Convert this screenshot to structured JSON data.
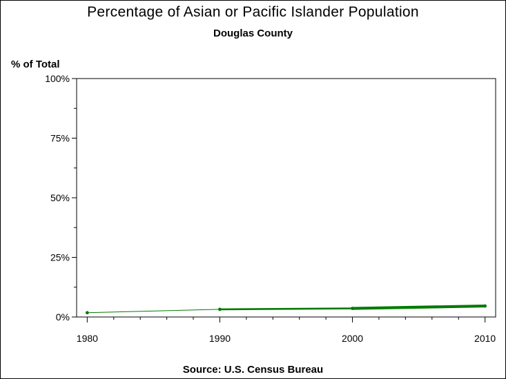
{
  "chart_data": {
    "type": "line",
    "title": "Percentage of Asian or Pacific Islander Population",
    "subtitle": "Douglas County",
    "ylabel": "% of Total",
    "xlabel": "",
    "source": "Source: U.S. Census Bureau",
    "x": [
      1980,
      1990,
      2000,
      2010
    ],
    "series": [
      {
        "values": [
          1.8,
          3.2,
          3.6,
          4.6
        ]
      }
    ],
    "xlim": [
      1979.2,
      2010.8
    ],
    "ylim": [
      0,
      100
    ],
    "x_ticks": [
      1980,
      1990,
      2000,
      2010
    ],
    "x_tick_labels": [
      "1980",
      "1990",
      "2000",
      "2010"
    ],
    "y_ticks": [
      0,
      25,
      50,
      75,
      100
    ],
    "y_tick_labels": [
      "0%",
      "25%",
      "50%",
      "75%",
      "100%"
    ],
    "grid": false,
    "line_color": "#007a00"
  }
}
